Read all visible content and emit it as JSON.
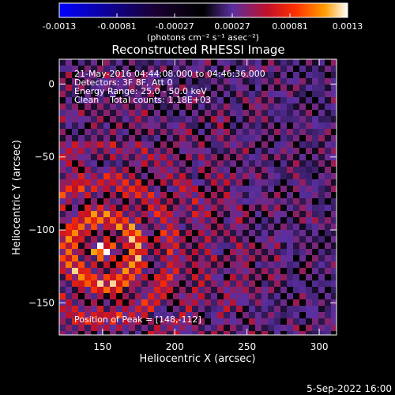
{
  "chart_data": {
    "type": "heatmap",
    "title": "Reconstructed RHESSI Image",
    "xlabel": "Heliocentric X (arcsec)",
    "ylabel": "Heliocentric Y (arcsec)",
    "xlim": [
      120,
      312
    ],
    "ylim": [
      -172,
      17
    ],
    "xticks": [
      150,
      200,
      250,
      300
    ],
    "yticks": [
      0,
      -50,
      -100,
      -150
    ],
    "colorbar": {
      "range": [
        -0.0013,
        0.0013
      ],
      "ticks": [
        "-0.0013",
        "-0.00081",
        "-0.00027",
        "0.00027",
        "0.00081",
        "0.0013"
      ],
      "unit_label": "(photons cm⁻² s⁻¹ asec⁻²)",
      "colormap": [
        "#0000ff",
        "#1a0033",
        "#000000",
        "#5a2fa0",
        "#c0102a",
        "#ff3000",
        "#ff9c00",
        "#ffffff"
      ]
    },
    "annotations": [
      "21-May-2016 04:44:08.000 to 04:46:36.000",
      "Detectors: 3F 8F, Att 0",
      "Energy Range: 25.0 - 50.0 keV",
      "Clean    Total counts: 1.18E+03",
      "Position of Peak = [148,-112]"
    ],
    "peak": [
      148,
      -112
    ],
    "timestamp": "5-Sep-2022 16:00"
  }
}
